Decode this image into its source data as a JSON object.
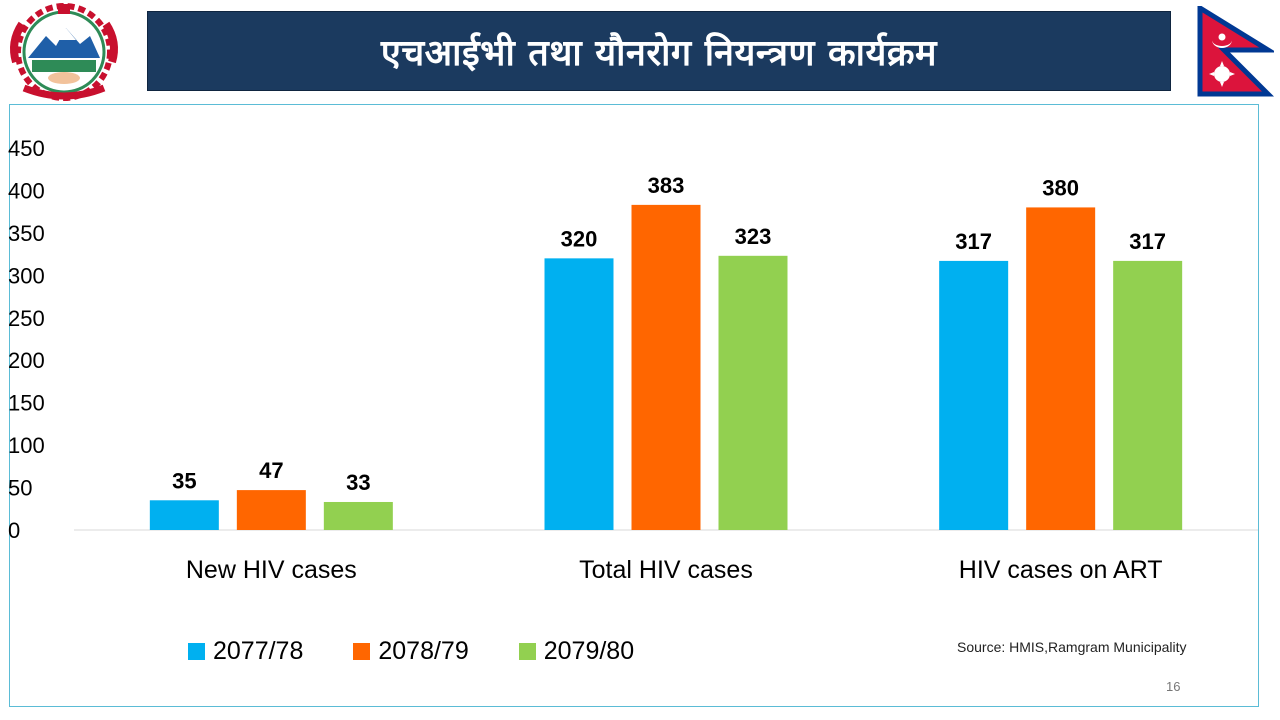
{
  "header": {
    "title": "एचआईभी तथा यौनरोग नियन्त्रण कार्यक्रम",
    "logo_icon": "nepal-government-emblem-icon",
    "flag_icon": "nepal-flag-icon"
  },
  "colors": {
    "banner": "#1b3a5f",
    "series": [
      "#00b0f0",
      "#ff6600",
      "#92d050"
    ]
  },
  "chart_data": {
    "type": "bar",
    "categories": [
      "New HIV cases",
      "Total HIV cases",
      "HIV cases on ART"
    ],
    "series": [
      {
        "name": "2077/78",
        "values": [
          35,
          320,
          317
        ]
      },
      {
        "name": "2078/79",
        "values": [
          47,
          383,
          380
        ]
      },
      {
        "name": "2079/80",
        "values": [
          33,
          323,
          317
        ]
      }
    ],
    "yticks": [
      "0",
      "50",
      "100",
      "150",
      "200",
      "250",
      "300",
      "350",
      "400",
      "450"
    ],
    "ylim": [
      0,
      450
    ],
    "grid": false,
    "legend": "bottom",
    "data_labels": true
  },
  "footer": {
    "source": "Source: HMIS,Ramgram Municipality",
    "page_number": "16"
  }
}
